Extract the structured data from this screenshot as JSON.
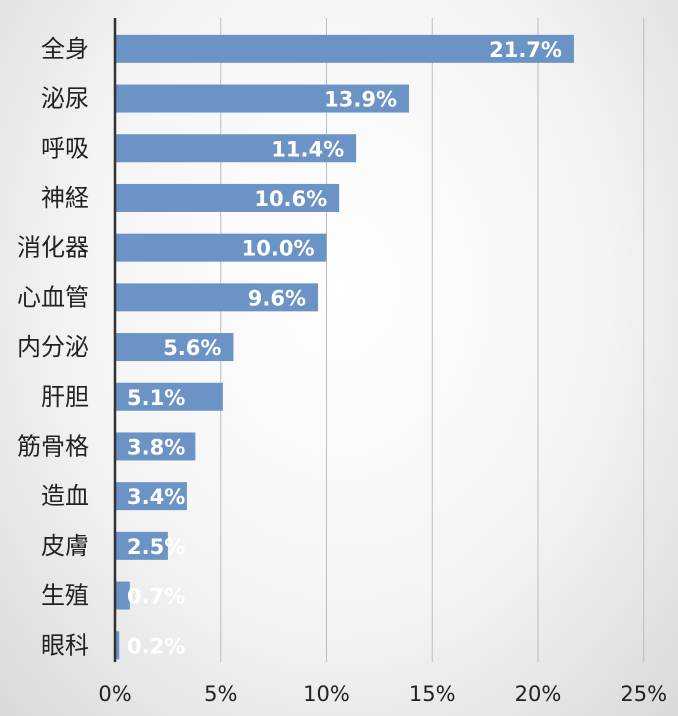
{
  "chart_data": {
    "type": "bar",
    "orientation": "horizontal",
    "categories": [
      "全身",
      "泌尿",
      "呼吸",
      "神経",
      "消化器",
      "心血管",
      "内分泌",
      "肝胆",
      "筋骨格",
      "造血",
      "皮膚",
      "生殖",
      "眼科"
    ],
    "values": [
      21.7,
      13.9,
      11.4,
      10.6,
      10.0,
      9.6,
      5.6,
      5.1,
      3.8,
      3.4,
      2.5,
      0.7,
      0.2
    ],
    "value_labels": [
      "21.7%",
      "13.9%",
      "11.4%",
      "10.6%",
      "10.0%",
      "9.6%",
      "5.6%",
      "5.1%",
      "3.8%",
      "3.4%",
      "2.5%",
      "0.7%",
      "0.2%"
    ],
    "xlim": [
      0,
      25
    ],
    "x_ticks": [
      0,
      5,
      10,
      15,
      20,
      25
    ],
    "x_tick_labels": [
      "0%",
      "5%",
      "10%",
      "15%",
      "20%",
      "25%"
    ],
    "grid": "vertical",
    "bar_color": "#6b93c6",
    "title": "",
    "xlabel": "",
    "ylabel": ""
  }
}
